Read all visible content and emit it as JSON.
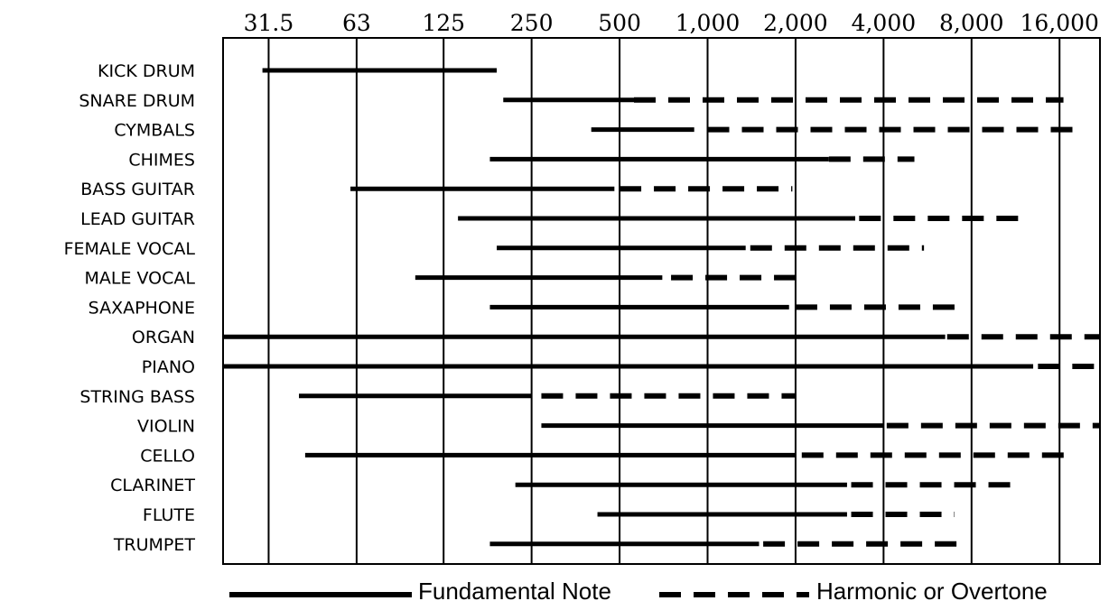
{
  "chart_data": {
    "type": "range-bar",
    "x_scale": "log2",
    "x_unit": "Hz",
    "xlim": [
      22,
      22000
    ],
    "x_ticks": [
      {
        "value": 31.5,
        "label": "31.5"
      },
      {
        "value": 63,
        "label": "63"
      },
      {
        "value": 125,
        "label": "125"
      },
      {
        "value": 250,
        "label": "250"
      },
      {
        "value": 500,
        "label": "500"
      },
      {
        "value": 1000,
        "label": "1,000"
      },
      {
        "value": 2000,
        "label": "2,000"
      },
      {
        "value": 4000,
        "label": "4,000"
      },
      {
        "value": 8000,
        "label": "8,000"
      },
      {
        "value": 16000,
        "label": "16,000"
      }
    ],
    "instruments": [
      {
        "name": "KICK DRUM",
        "fundamental": [
          30,
          190
        ],
        "harmonic": null
      },
      {
        "name": "SNARE DRUM",
        "fundamental": [
          200,
          560
        ],
        "harmonic": [
          560,
          16500
        ]
      },
      {
        "name": "CYMBALS",
        "fundamental": [
          400,
          900
        ],
        "harmonic": [
          1000,
          19000
        ]
      },
      {
        "name": "CHIMES",
        "fundamental": [
          180,
          2600
        ],
        "harmonic": [
          2600,
          5100
        ]
      },
      {
        "name": "BASS GUITAR",
        "fundamental": [
          60,
          480
        ],
        "harmonic": [
          500,
          1950
        ]
      },
      {
        "name": "LEAD GUITAR",
        "fundamental": [
          140,
          3200
        ],
        "harmonic": [
          3300,
          12500
        ]
      },
      {
        "name": "FEMALE VOCAL",
        "fundamental": [
          190,
          1350
        ],
        "harmonic": [
          1400,
          5500
        ]
      },
      {
        "name": "MALE VOCAL",
        "fundamental": [
          100,
          700
        ],
        "harmonic": [
          750,
          2000
        ]
      },
      {
        "name": "SAXAPHONE",
        "fundamental": [
          180,
          1900
        ],
        "harmonic": [
          2000,
          7000
        ]
      },
      {
        "name": "ORGAN",
        "fundamental": [
          22,
          6500
        ],
        "harmonic": [
          6600,
          22000
        ]
      },
      {
        "name": "PIANO",
        "fundamental": [
          22,
          13000
        ],
        "harmonic": [
          13500,
          22000
        ]
      },
      {
        "name": "STRING BASS",
        "fundamental": [
          40,
          250
        ],
        "harmonic": [
          270,
          2000
        ]
      },
      {
        "name": "VIOLIN",
        "fundamental": [
          270,
          4000
        ],
        "harmonic": [
          4100,
          22000
        ]
      },
      {
        "name": "CELLO",
        "fundamental": [
          42,
          2000
        ],
        "harmonic": [
          2100,
          17000
        ]
      },
      {
        "name": "CLARINET",
        "fundamental": [
          220,
          3000
        ],
        "harmonic": [
          3100,
          11000
        ]
      },
      {
        "name": "FLUTE",
        "fundamental": [
          420,
          3000
        ],
        "harmonic": [
          3100,
          7000
        ]
      },
      {
        "name": "TRUMPET",
        "fundamental": [
          180,
          1500
        ],
        "harmonic": [
          1550,
          7500
        ]
      }
    ],
    "legend": {
      "position": "bottom",
      "fundamental_label": "Fundamental Note",
      "harmonic_label": "Harmonic or Overtone"
    },
    "grid": true,
    "colors": {
      "ink": "#000000",
      "background": "#ffffff"
    }
  }
}
